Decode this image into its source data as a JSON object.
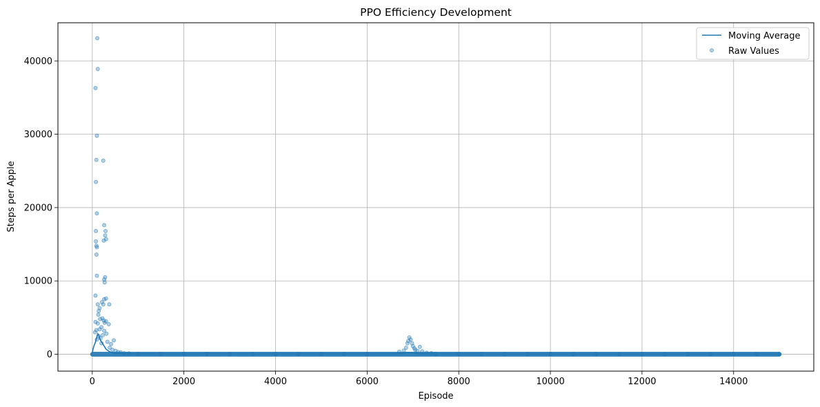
{
  "chart_data": {
    "type": "scatter",
    "title": "PPO Efficiency Development",
    "xlabel": "Episode",
    "ylabel": "Steps per Apple",
    "xlim": [
      -750,
      15750
    ],
    "ylim": [
      -2300,
      45200
    ],
    "xticks": [
      0,
      2000,
      4000,
      6000,
      8000,
      10000,
      12000,
      14000
    ],
    "yticks": [
      0,
      10000,
      20000,
      30000,
      40000
    ],
    "grid": true,
    "legend_position": "top-right",
    "series": [
      {
        "name": "Moving Average",
        "kind": "line",
        "color": "#1f77b4",
        "x": [
          0,
          20,
          40,
          60,
          80,
          100,
          120,
          140,
          160,
          180,
          200,
          220,
          240,
          260,
          280,
          300,
          340,
          380,
          420,
          460,
          500,
          600,
          800,
          1000,
          2000,
          3000,
          4000,
          5000,
          6000,
          6600,
          6800,
          6900,
          7000,
          7100,
          7200,
          7400,
          8000,
          9000,
          10000,
          11000,
          12000,
          13000,
          14000,
          15000
        ],
        "y": [
          200,
          800,
          1200,
          1500,
          1900,
          2400,
          2800,
          2600,
          2200,
          1900,
          1700,
          1500,
          1300,
          1100,
          900,
          700,
          500,
          350,
          250,
          180,
          130,
          90,
          70,
          60,
          50,
          40,
          35,
          30,
          30,
          60,
          150,
          220,
          180,
          100,
          60,
          40,
          30,
          25,
          25,
          20,
          20,
          20,
          20,
          20
        ]
      },
      {
        "name": "Raw Values",
        "kind": "scatter",
        "color": "#1f77b4",
        "points": [
          [
            110,
            43100
          ],
          [
            120,
            38900
          ],
          [
            70,
            36300
          ],
          [
            100,
            29800
          ],
          [
            90,
            26500
          ],
          [
            240,
            26400
          ],
          [
            80,
            23500
          ],
          [
            100,
            19200
          ],
          [
            260,
            17600
          ],
          [
            290,
            16800
          ],
          [
            80,
            16800
          ],
          [
            280,
            16200
          ],
          [
            80,
            15400
          ],
          [
            300,
            15700
          ],
          [
            250,
            15500
          ],
          [
            90,
            14800
          ],
          [
            100,
            14600
          ],
          [
            90,
            13600
          ],
          [
            100,
            10700
          ],
          [
            280,
            10500
          ],
          [
            260,
            10200
          ],
          [
            270,
            9800
          ],
          [
            70,
            8000
          ],
          [
            300,
            7600
          ],
          [
            260,
            7500
          ],
          [
            240,
            6800
          ],
          [
            210,
            7100
          ],
          [
            370,
            6800
          ],
          [
            120,
            6800
          ],
          [
            160,
            6300
          ],
          [
            140,
            5900
          ],
          [
            130,
            5400
          ],
          [
            220,
            4900
          ],
          [
            170,
            4800
          ],
          [
            250,
            4600
          ],
          [
            300,
            4500
          ],
          [
            70,
            4400
          ],
          [
            360,
            4100
          ],
          [
            120,
            4200
          ],
          [
            270,
            4300
          ],
          [
            200,
            3700
          ],
          [
            160,
            3400
          ],
          [
            260,
            3200
          ],
          [
            90,
            3300
          ],
          [
            60,
            3000
          ],
          [
            310,
            2800
          ],
          [
            230,
            2600
          ],
          [
            140,
            2500
          ],
          [
            180,
            2200
          ],
          [
            100,
            2000
          ],
          [
            470,
            1900
          ],
          [
            330,
            1700
          ],
          [
            410,
            1400
          ],
          [
            200,
            1500
          ],
          [
            380,
            900
          ],
          [
            440,
            600
          ],
          [
            510,
            450
          ],
          [
            560,
            300
          ],
          [
            620,
            250
          ],
          [
            700,
            150
          ],
          [
            800,
            120
          ],
          [
            6700,
            350
          ],
          [
            6800,
            500
          ],
          [
            6850,
            900
          ],
          [
            6880,
            1500
          ],
          [
            6900,
            1800
          ],
          [
            6920,
            2300
          ],
          [
            6950,
            2000
          ],
          [
            6980,
            1500
          ],
          [
            7000,
            1100
          ],
          [
            7030,
            800
          ],
          [
            7050,
            600
          ],
          [
            7100,
            450
          ],
          [
            7150,
            1000
          ],
          [
            7200,
            400
          ],
          [
            7300,
            200
          ],
          [
            7400,
            150
          ],
          [
            1000,
            60
          ],
          [
            1500,
            60
          ],
          [
            2000,
            80
          ],
          [
            2500,
            50
          ],
          [
            3000,
            40
          ],
          [
            3500,
            40
          ],
          [
            4000,
            30
          ],
          [
            4500,
            30
          ],
          [
            5000,
            30
          ],
          [
            5500,
            40
          ],
          [
            6000,
            30
          ],
          [
            7500,
            40
          ],
          [
            8000,
            30
          ],
          [
            8500,
            30
          ],
          [
            9000,
            25
          ],
          [
            9500,
            25
          ],
          [
            10000,
            25
          ],
          [
            10500,
            20
          ],
          [
            11000,
            20
          ],
          [
            11500,
            20
          ],
          [
            12000,
            20
          ],
          [
            12500,
            20
          ],
          [
            13000,
            20
          ],
          [
            13500,
            20
          ],
          [
            14000,
            20
          ],
          [
            14500,
            20
          ],
          [
            15000,
            20
          ]
        ]
      }
    ]
  }
}
